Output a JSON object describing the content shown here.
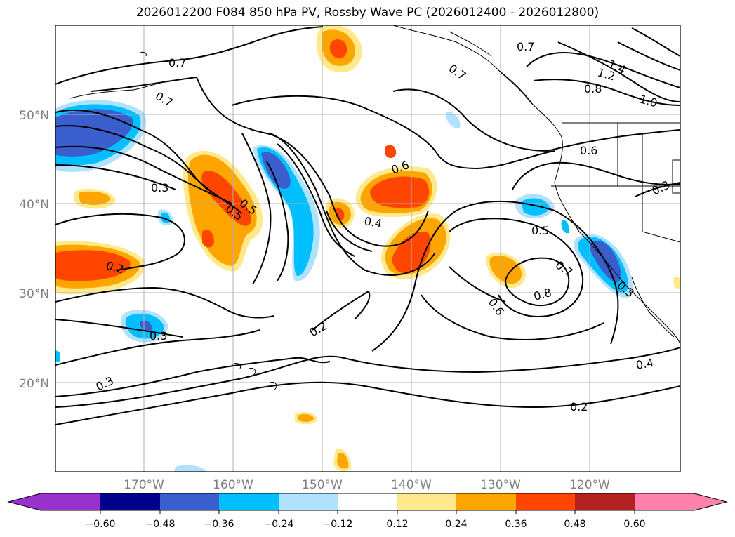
{
  "title": "2026012200 F084 850 hPa PV, Rossby Wave PC (2026012400 - 2026012800)",
  "map": {
    "lat_labels": [
      "50°N",
      "40°N",
      "30°N",
      "20°N"
    ],
    "lon_labels": [
      "170°W",
      "160°W",
      "150°W",
      "140°W",
      "130°W",
      "120°W"
    ],
    "gridlines": true,
    "label_color": "#808080",
    "contour_labels": [
      "0.7",
      "0.7",
      "0.7",
      "0.7",
      "1.4",
      "1.2",
      "0.8",
      "1.0",
      "0.6",
      "0.6",
      "0.3",
      "0.5",
      "0.5",
      "0.4",
      "0.5",
      "0.2",
      "0.7",
      "0.8",
      "0.6",
      "0.3",
      "0.3",
      "0.2",
      "0.3",
      "0.4",
      "0.2",
      "0.3"
    ]
  },
  "colorbar": {
    "ticks": [
      "−0.60",
      "−0.48",
      "−0.36",
      "−0.24",
      "−0.12",
      "0.12",
      "0.24",
      "0.36",
      "0.48",
      "0.60"
    ],
    "colors": [
      "#9932cc",
      "#00008b",
      "#3a5fcd",
      "#00bfff",
      "#b0e2ff",
      "#ffffff",
      "#ffe98a",
      "#ffa500",
      "#ff4500",
      "#b22222",
      "#ff82ab"
    ]
  }
}
